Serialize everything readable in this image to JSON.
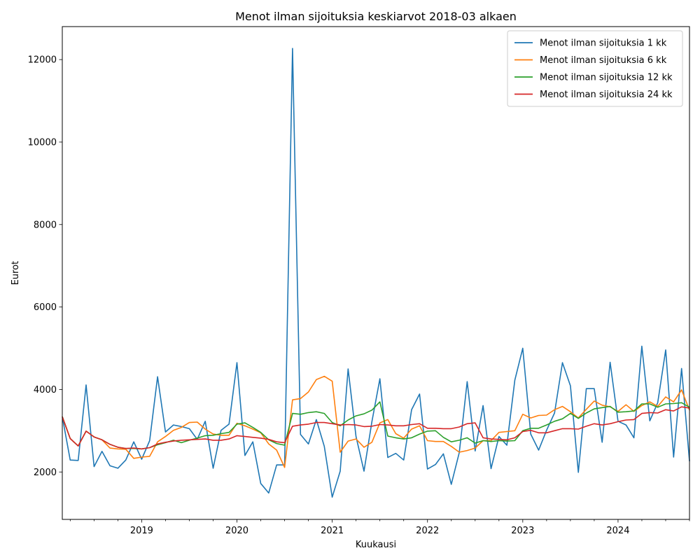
{
  "chart_data": {
    "type": "line",
    "title": "Menot ilman sijoituksia keskiarvot 2018-03 alkaen",
    "xlabel": "Kuukausi",
    "ylabel": "Eurot",
    "start_month": "2018-03",
    "x_ticks": [
      "2019",
      "2020",
      "2021",
      "2022",
      "2023",
      "2024"
    ],
    "y_ticks": [
      2000,
      4000,
      6000,
      8000,
      10000,
      12000
    ],
    "ylim": [
      850,
      12800
    ],
    "grid": false,
    "legend_position": "top-right",
    "series": [
      {
        "name": "Menot ilman sijoituksia 1 kk",
        "color": "#1f77b4",
        "values": [
          3340,
          2290,
          2280,
          4110,
          2130,
          2500,
          2150,
          2090,
          2290,
          2730,
          2310,
          2760,
          4310,
          2970,
          3140,
          3100,
          3050,
          2790,
          3230,
          2090,
          3010,
          3160,
          4650,
          2400,
          2730,
          1720,
          1490,
          2170,
          2170,
          12270,
          2910,
          2680,
          3270,
          2620,
          1390,
          2020,
          4500,
          2860,
          2020,
          3220,
          4260,
          2350,
          2450,
          2290,
          3510,
          3890,
          2070,
          2180,
          2440,
          1700,
          2470,
          4190,
          2510,
          3610,
          2080,
          2860,
          2650,
          4230,
          5000,
          2920,
          2530,
          3010,
          3430,
          4650,
          4090,
          1990,
          4020,
          4020,
          2720,
          4660,
          3230,
          3140,
          2830,
          5050,
          3240,
          3680,
          4960,
          2360,
          4510,
          2260
        ]
      },
      {
        "name": "Menot ilman sijoituksia 6 kk",
        "color": "#ff7f0e",
        "values": [
          3340,
          2810,
          2630,
          2990,
          2850,
          2780,
          2580,
          2560,
          2550,
          2330,
          2360,
          2380,
          2730,
          2860,
          3010,
          3080,
          3200,
          3210,
          3040,
          2920,
          2890,
          2890,
          3180,
          3120,
          3040,
          2950,
          2680,
          2530,
          2110,
          3750,
          3780,
          3940,
          4240,
          4320,
          4200,
          2480,
          2750,
          2800,
          2600,
          2720,
          3190,
          3270,
          2930,
          2820,
          3040,
          3120,
          2760,
          2740,
          2740,
          2620,
          2480,
          2520,
          2580,
          2760,
          2760,
          2960,
          2980,
          3000,
          3400,
          3310,
          3370,
          3380,
          3510,
          3590,
          3460,
          3310,
          3520,
          3720,
          3620,
          3580,
          3470,
          3630,
          3470,
          3610,
          3700,
          3590,
          3820,
          3700,
          3990,
          3500
        ]
      },
      {
        "name": "Menot ilman sijoituksia 12 kk",
        "color": "#2ca02c",
        "values": [
          3340,
          2810,
          2630,
          2990,
          2850,
          2780,
          2670,
          2600,
          2570,
          2570,
          2560,
          2590,
          2660,
          2710,
          2770,
          2710,
          2770,
          2820,
          2880,
          2890,
          2930,
          2960,
          3160,
          3190,
          3080,
          2960,
          2780,
          2690,
          2650,
          3420,
          3400,
          3440,
          3460,
          3420,
          3200,
          3120,
          3260,
          3360,
          3410,
          3500,
          3700,
          2870,
          2830,
          2800,
          2830,
          2920,
          2990,
          3000,
          2840,
          2730,
          2770,
          2830,
          2700,
          2760,
          2740,
          2760,
          2750,
          2760,
          3000,
          3060,
          3060,
          3140,
          3230,
          3290,
          3420,
          3300,
          3430,
          3530,
          3560,
          3590,
          3450,
          3460,
          3480,
          3650,
          3650,
          3570,
          3650,
          3660,
          3680,
          3570
        ]
      },
      {
        "name": "Menot ilman sijoituksia 24 kk",
        "color": "#d62728",
        "values": [
          3340,
          2810,
          2630,
          2990,
          2850,
          2780,
          2670,
          2600,
          2570,
          2580,
          2560,
          2590,
          2680,
          2720,
          2750,
          2770,
          2780,
          2790,
          2800,
          2770,
          2770,
          2800,
          2880,
          2860,
          2840,
          2820,
          2790,
          2730,
          2710,
          3110,
          3140,
          3160,
          3200,
          3200,
          3170,
          3140,
          3150,
          3140,
          3100,
          3110,
          3150,
          3140,
          3120,
          3120,
          3150,
          3170,
          3060,
          3060,
          3050,
          3050,
          3090,
          3170,
          3190,
          2830,
          2800,
          2790,
          2780,
          2830,
          2980,
          3010,
          2950,
          2950,
          3000,
          3050,
          3050,
          3040,
          3110,
          3170,
          3140,
          3170,
          3220,
          3260,
          3270,
          3420,
          3440,
          3430,
          3510,
          3480,
          3580,
          3550
        ]
      }
    ]
  }
}
